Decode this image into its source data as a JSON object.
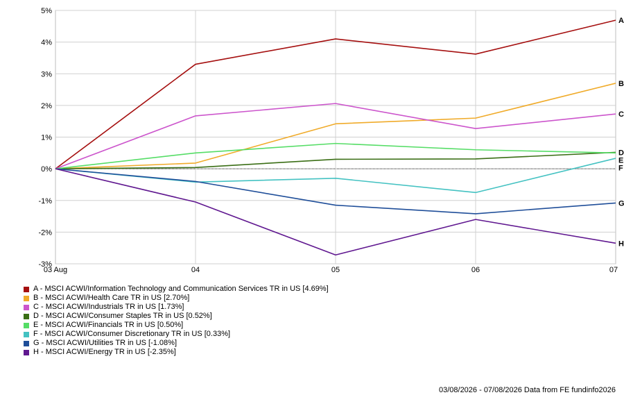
{
  "chart_data": {
    "type": "line",
    "x": [
      "03 Aug",
      "04",
      "05",
      "06",
      "07"
    ],
    "ylim": [
      -3,
      5
    ],
    "yticks": [
      5,
      4,
      3,
      2,
      1,
      0,
      -1,
      -2,
      -3
    ],
    "ytick_labels": [
      "5%",
      "4%",
      "3%",
      "2%",
      "1%",
      "0%",
      "-1%",
      "-2%",
      "-3%"
    ],
    "grid": true,
    "legend_position": "bottom-left",
    "series": [
      {
        "name": "A - MSCI ACWI/Information Technology and Communication Services TR in US [4.69%]",
        "label": "A",
        "color": "#a50f0f",
        "values": [
          0,
          3.3,
          4.1,
          3.62,
          4.69
        ]
      },
      {
        "name": "B - MSCI ACWI/Health Care TR in US [2.70%]",
        "label": "B",
        "color": "#f0ab2a",
        "values": [
          0,
          0.18,
          1.42,
          1.6,
          2.7
        ]
      },
      {
        "name": "C - MSCI ACWI/Industrials TR in US [1.73%]",
        "label": "C",
        "color": "#cc55cc",
        "values": [
          0,
          1.67,
          2.06,
          1.27,
          1.73
        ]
      },
      {
        "name": "D - MSCI ACWI/Consumer Staples TR in US [0.52%]",
        "label": "D",
        "color": "#3a6e15",
        "values": [
          0,
          0.04,
          0.3,
          0.31,
          0.52
        ]
      },
      {
        "name": "E - MSCI ACWI/Financials TR in US [0.50%]",
        "label": "E",
        "color": "#55dd66",
        "values": [
          0,
          0.5,
          0.8,
          0.6,
          0.5
        ]
      },
      {
        "name": "F - MSCI ACWI/Consumer Discretionary TR in US [0.33%]",
        "label": "F",
        "color": "#44c2c2",
        "values": [
          0,
          -0.42,
          -0.3,
          -0.75,
          0.33
        ]
      },
      {
        "name": "G - MSCI ACWI/Utilities TR in US [-1.08%]",
        "label": "G",
        "color": "#1f4e99",
        "values": [
          0,
          -0.4,
          -1.15,
          -1.42,
          -1.08
        ]
      },
      {
        "name": "H - MSCI ACWI/Energy TR in US [-2.35%]",
        "label": "H",
        "color": "#601890",
        "values": [
          0,
          -1.05,
          -2.72,
          -1.6,
          -2.35
        ]
      }
    ]
  },
  "footer": "03/08/2026 - 07/08/2026 Data from FE fundinfo2026"
}
